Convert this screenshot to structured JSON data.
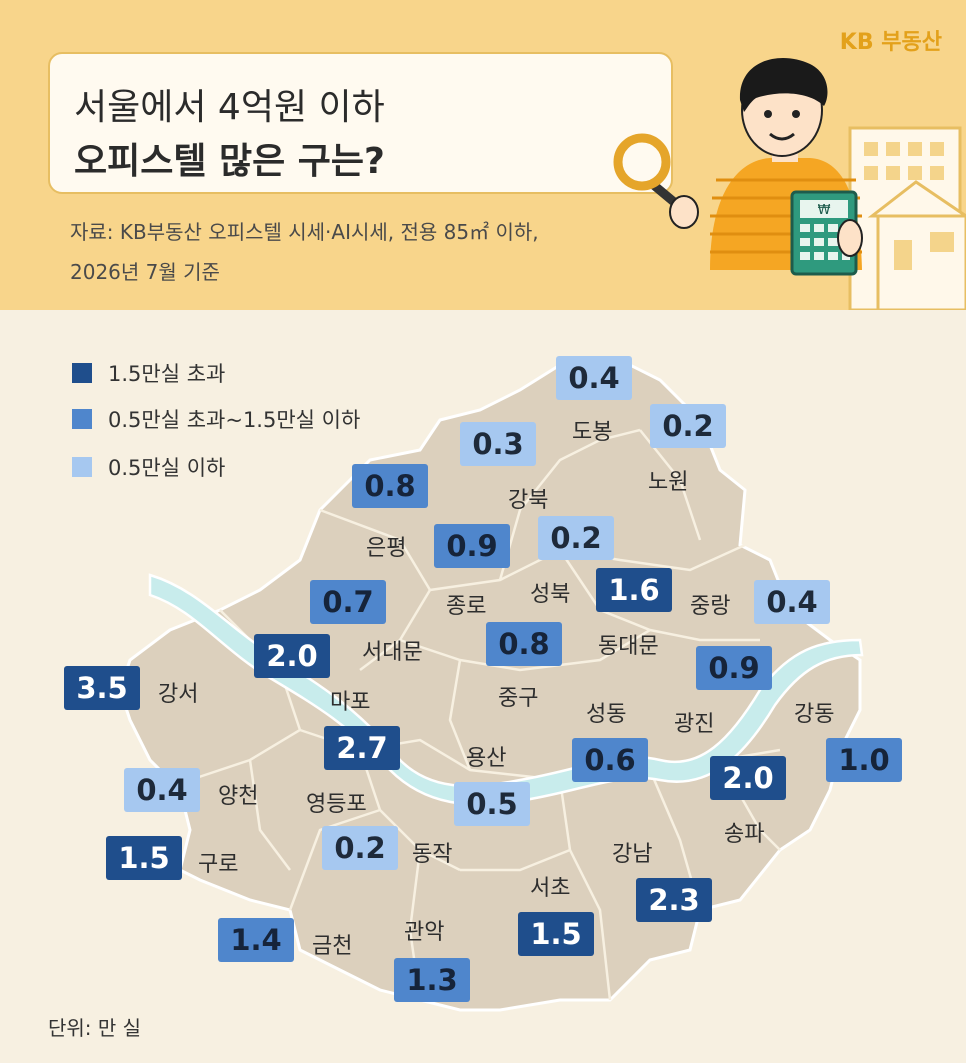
{
  "header": {
    "brand": "KB 부동산",
    "title_line1": "서울에서 4억원 이하",
    "title_line2": "오피스텔 많은 구는?",
    "source_line1": "자료: KB부동산 오피스텔 시세·AI시세, 전용 85㎡ 이하,",
    "source_line2": "2026년 7월 기준"
  },
  "legend": [
    {
      "label": "1.5만실 초과",
      "color": "#1f4e8c"
    },
    {
      "label": "0.5만실 초과~1.5만실 이하",
      "color": "#4f86cc"
    },
    {
      "label": "0.5만실 이하",
      "color": "#a6c8f0"
    }
  ],
  "unit_label": "단위: 만 실",
  "districts": [
    {
      "name": "도봉",
      "value": "0.4",
      "level": "light"
    },
    {
      "name": "노원",
      "value": "0.2",
      "level": "light"
    },
    {
      "name": "강북",
      "value": "0.3",
      "level": "light"
    },
    {
      "name": "은평",
      "value": "0.8",
      "level": "mid"
    },
    {
      "name": "종로",
      "value": "0.9",
      "level": "mid"
    },
    {
      "name": "성북",
      "value": "0.2",
      "level": "light"
    },
    {
      "name": "동대문",
      "value": "1.6",
      "level": "dark"
    },
    {
      "name": "중랑",
      "value": "0.4",
      "level": "light"
    },
    {
      "name": "서대문",
      "value": "0.7",
      "level": "mid"
    },
    {
      "name": "마포",
      "value": "2.0",
      "level": "dark"
    },
    {
      "name": "중구",
      "value": "0.8",
      "level": "mid"
    },
    {
      "name": "광진",
      "value": "0.9",
      "level": "mid"
    },
    {
      "name": "강서",
      "value": "3.5",
      "level": "dark"
    },
    {
      "name": "성동",
      "value": "0.6",
      "level": "mid"
    },
    {
      "name": "강동",
      "value": "1.0",
      "level": "mid"
    },
    {
      "name": "영등포",
      "value": "2.7",
      "level": "dark"
    },
    {
      "name": "용산",
      "value": "0.5",
      "level": "light"
    },
    {
      "name": "양천",
      "value": "0.4",
      "level": "light"
    },
    {
      "name": "송파",
      "value": "2.0",
      "level": "dark"
    },
    {
      "name": "구로",
      "value": "1.5",
      "level": "dark"
    },
    {
      "name": "동작",
      "value": "0.2",
      "level": "light"
    },
    {
      "name": "강남",
      "value": "2.3",
      "level": "dark"
    },
    {
      "name": "서초",
      "value": "1.5",
      "level": "dark"
    },
    {
      "name": "금천",
      "value": "1.4",
      "level": "mid"
    },
    {
      "name": "관악",
      "value": "1.3",
      "level": "mid"
    }
  ]
}
